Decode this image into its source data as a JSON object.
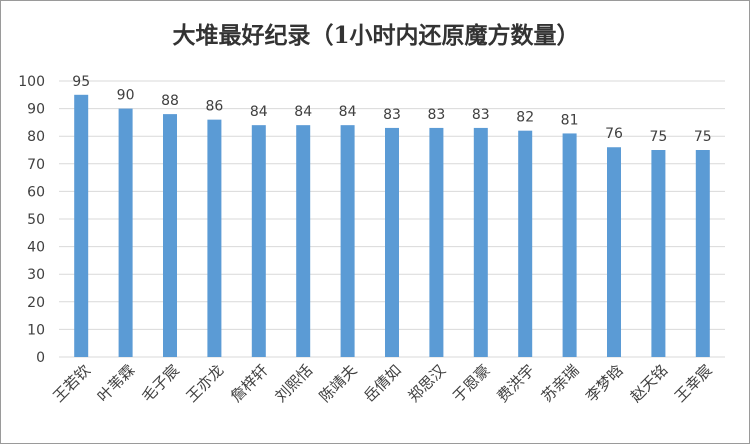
{
  "chart_data": {
    "type": "bar",
    "title": "大堆最好纪录（1小时内还原魔方数量）",
    "xlabel": "",
    "ylabel": "",
    "categories": [
      "王若钦",
      "叶苇霖",
      "毛子宸",
      "王亦龙",
      "詹梓轩",
      "刘熙恬",
      "陈靖夫",
      "岳倩如",
      "郑思汉",
      "于恩豪",
      "费洪宇",
      "苏亲瑞",
      "李梦晗",
      "赵天铭",
      "王幸宸"
    ],
    "values": [
      95,
      90,
      88,
      86,
      84,
      84,
      84,
      83,
      83,
      83,
      82,
      81,
      76,
      75,
      75
    ],
    "ylim": [
      0,
      100
    ],
    "yticks": [
      0,
      10,
      20,
      30,
      40,
      50,
      60,
      70,
      80,
      90,
      100
    ],
    "grid": true,
    "bar_color": "#5b9bd5",
    "grid_color": "#d9d9d9"
  }
}
